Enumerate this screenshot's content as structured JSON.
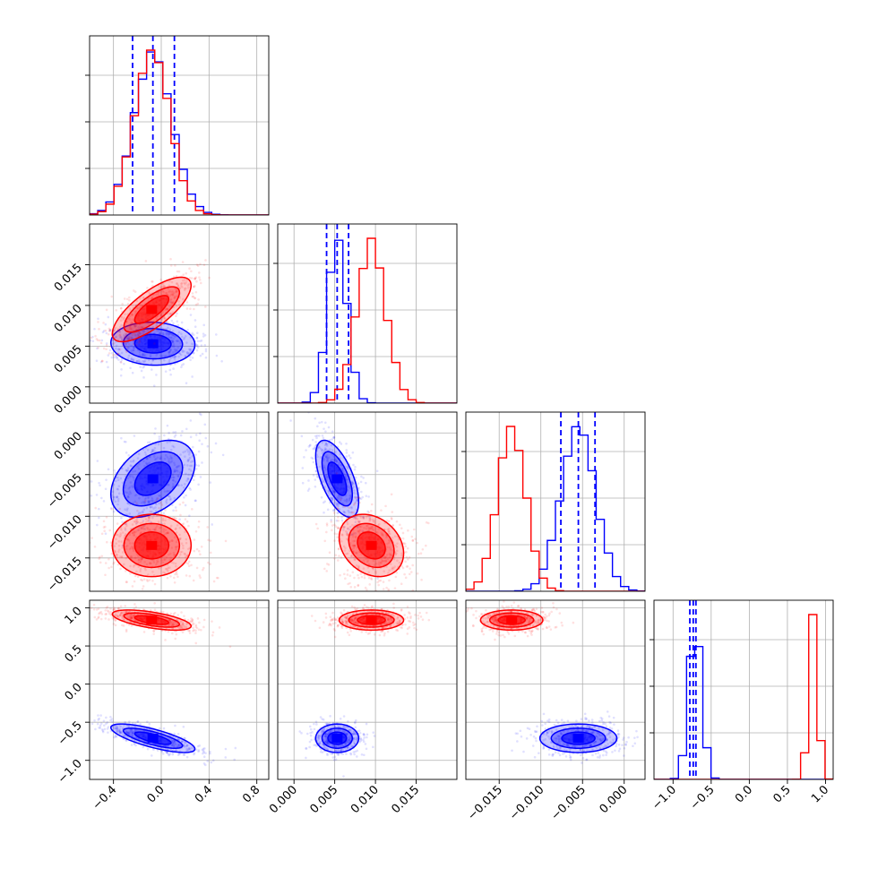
{
  "chart_data": {
    "type": "corner",
    "parameters": [
      {
        "range": [
          -0.6,
          0.9
        ],
        "ticks": [
          -0.4,
          0.0,
          0.4,
          0.8
        ],
        "tick_labels": [
          "−0.4",
          "0.0",
          "0.4",
          "0.8"
        ]
      },
      {
        "range": [
          -0.002,
          0.02
        ],
        "ticks": [
          0.0,
          0.005,
          0.01,
          0.015
        ],
        "tick_labels": [
          "0.000",
          "0.005",
          "0.010",
          "0.015"
        ]
      },
      {
        "range": [
          -0.019,
          0.0025
        ],
        "ticks": [
          -0.015,
          -0.01,
          -0.005,
          0.0
        ],
        "tick_labels": [
          "−0.015",
          "−0.010",
          "−0.005",
          "0.000"
        ]
      },
      {
        "range": [
          -1.25,
          1.1
        ],
        "ticks": [
          -1.0,
          -0.5,
          0.0,
          0.5,
          1.0
        ],
        "tick_labels": [
          "−1.0",
          "−0.5",
          "0.0",
          "0.5",
          "1.0"
        ]
      }
    ],
    "grid": true,
    "series": [
      {
        "color": "#0000ff",
        "means": [
          -0.07,
          0.0053,
          -0.0055,
          -0.71
        ],
        "sigmas": [
          0.16,
          0.0012,
          0.0021,
          0.085
        ],
        "quantiles": [
          [
            -0.24,
            -0.07,
            0.11
          ],
          [
            0.004,
            0.0053,
            0.0067
          ],
          [
            -0.0076,
            -0.0055,
            -0.0035
          ],
          [
            -0.78,
            -0.735,
            -0.7
          ]
        ],
        "correlations": [
          {
            "pair": [
              1,
              0
            ],
            "rho": -0.05
          },
          {
            "pair": [
              2,
              0
            ],
            "rho": 0.4
          },
          {
            "pair": [
              2,
              1
            ],
            "rho": -0.6
          },
          {
            "pair": [
              3,
              0
            ],
            "rho": -0.75
          },
          {
            "pair": [
              3,
              1
            ],
            "rho": 0.0
          },
          {
            "pair": [
              3,
              2
            ],
            "rho": 0.0
          }
        ]
      },
      {
        "color": "#ff0000",
        "means": [
          -0.08,
          0.0095,
          -0.0135,
          0.84
        ],
        "sigmas": [
          0.15,
          0.0018,
          0.0017,
          0.06
        ],
        "correlations": [
          {
            "pair": [
              1,
              0
            ],
            "rho": 0.75
          },
          {
            "pair": [
              2,
              0
            ],
            "rho": 0.0
          },
          {
            "pair": [
              2,
              1
            ],
            "rho": -0.25
          },
          {
            "pair": [
              3,
              0
            ],
            "rho": -0.6
          },
          {
            "pair": [
              3,
              1
            ],
            "rho": 0.0
          },
          {
            "pair": [
              3,
              2
            ],
            "rho": 0.0
          }
        ]
      }
    ]
  }
}
